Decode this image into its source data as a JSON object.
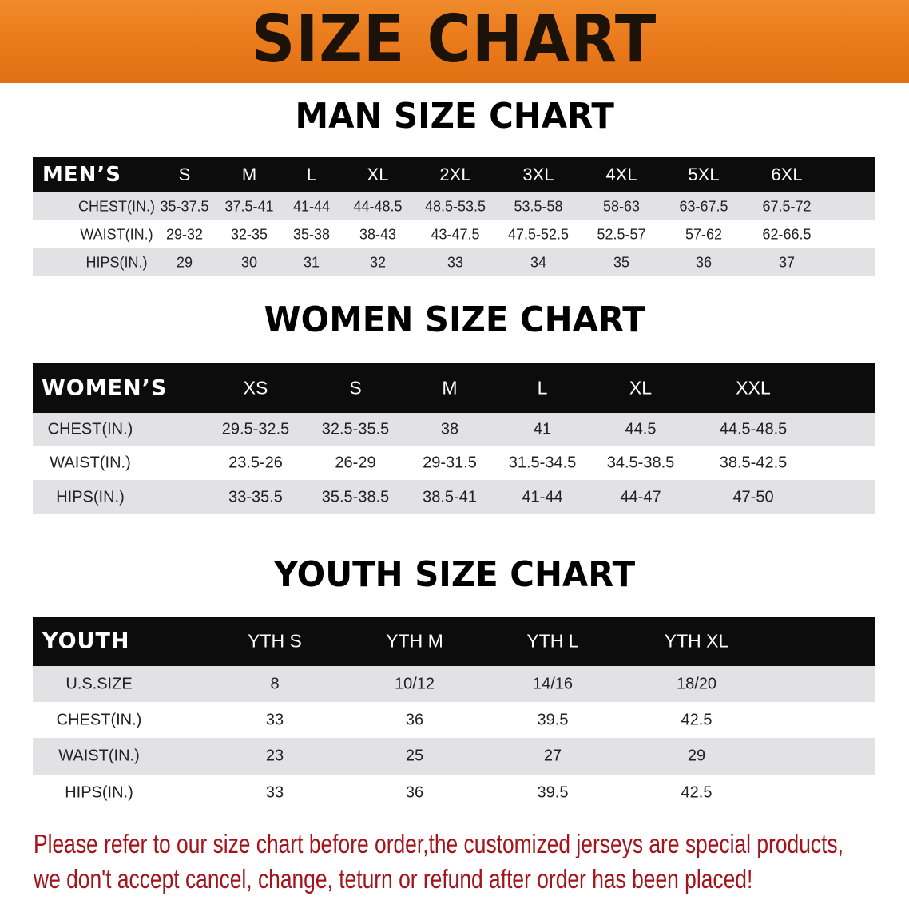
{
  "banner": {
    "title": "SIZE CHART",
    "background": "#e8781a"
  },
  "men": {
    "section_title": "MAN SIZE CHART",
    "header": [
      "MEN’S",
      "S",
      "M",
      "L",
      "XL",
      "2XL",
      "3XL",
      "4XL",
      "5XL",
      "6XL"
    ],
    "rows": [
      [
        "CHEST(IN.)",
        "35-37.5",
        "37.5-41",
        "41-44",
        "44-48.5",
        "48.5-53.5",
        "53.5-58",
        "58-63",
        "63-67.5",
        "67.5-72"
      ],
      [
        "WAIST(IN.)",
        "29-32",
        "32-35",
        "35-38",
        "38-43",
        "43-47.5",
        "47.5-52.5",
        "52.5-57",
        "57-62",
        "62-66.5"
      ],
      [
        "HIPS(IN.)",
        "29",
        "30",
        "31",
        "32",
        "33",
        "34",
        "35",
        "36",
        "37"
      ]
    ]
  },
  "women": {
    "section_title": "WOMEN SIZE CHART",
    "header": [
      "WOMEN’S",
      "XS",
      "S",
      "M",
      "L",
      "XL",
      "XXL"
    ],
    "rows": [
      [
        "CHEST(IN.)",
        "29.5-32.5",
        "32.5-35.5",
        "38",
        "41",
        "44.5",
        "44.5-48.5"
      ],
      [
        "WAIST(IN.)",
        "23.5-26",
        "26-29",
        "29-31.5",
        "31.5-34.5",
        "34.5-38.5",
        "38.5-42.5"
      ],
      [
        "HIPS(IN.)",
        "33-35.5",
        "35.5-38.5",
        "38.5-41",
        "41-44",
        "44-47",
        "47-50"
      ]
    ]
  },
  "youth": {
    "section_title": "YOUTH SIZE CHART",
    "header": [
      "YOUTH",
      "YTH S",
      "YTH M",
      "YTH L",
      "YTH XL"
    ],
    "rows": [
      [
        "U.S.SIZE",
        "8",
        "10/12",
        "14/16",
        "18/20"
      ],
      [
        "CHEST(IN.)",
        "33",
        "36",
        "39.5",
        "42.5"
      ],
      [
        "WAIST(IN.)",
        "23",
        "25",
        "27",
        "29"
      ],
      [
        "HIPS(IN.)",
        "33",
        "36",
        "39.5",
        "42.5"
      ]
    ]
  },
  "notice": {
    "line1": "Please refer to our size chart before order,the customized jerseys are special products,",
    "line2": "we don't accept cancel, change, teturn or refund after order has been placed!",
    "color": "#a3141c"
  }
}
